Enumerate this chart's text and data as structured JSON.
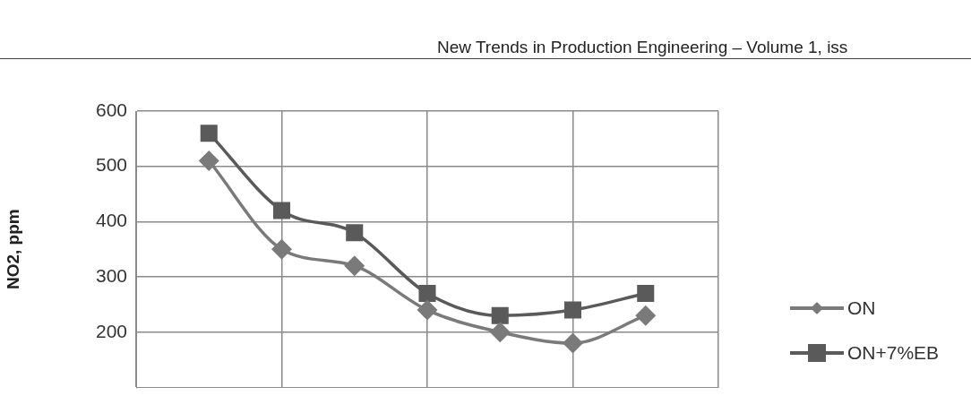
{
  "chart_data": {
    "type": "line",
    "ylabel": "NO2, ppm",
    "annotations": [
      "New Trends in Production Engineering – Volume 1, iss"
    ],
    "categories": [
      null,
      null,
      null,
      null,
      null,
      null,
      null
    ],
    "series": [
      {
        "name": "ON",
        "color": "#7a7a7a",
        "marker": "diamond",
        "values": [
          510,
          350,
          320,
          240,
          200,
          180,
          230
        ]
      },
      {
        "name": "ON+7%EB",
        "color": "#5a5a5a",
        "marker": "square",
        "values": [
          560,
          420,
          380,
          270,
          230,
          240,
          270
        ]
      }
    ],
    "ylim": [
      100,
      600
    ],
    "yticks": [
      200,
      300,
      400,
      500,
      600
    ],
    "grid": true,
    "legend": "right",
    "tick_labels": "y"
  }
}
